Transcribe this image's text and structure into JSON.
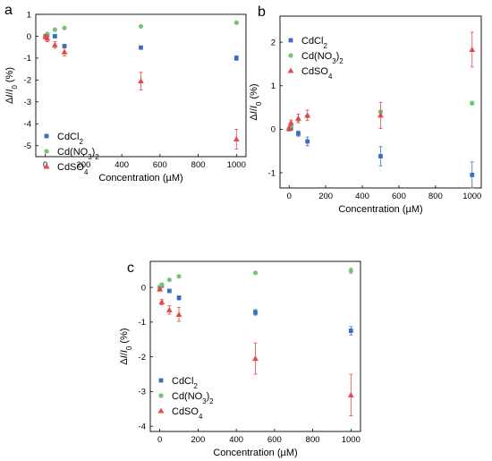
{
  "figure": {
    "panels": [
      {
        "letter": "a",
        "chart_data": {
          "type": "scatter",
          "xlabel": "Concentration (µM)",
          "ylabel": "ΔI/I0 (%)",
          "xlim": [
            -50,
            1050
          ],
          "ylim": [
            -5.5,
            1
          ],
          "x_ticks": [
            0,
            200,
            400,
            600,
            800,
            1000
          ],
          "y_ticks": [
            1,
            0,
            -1,
            -2,
            -3,
            -4,
            -5
          ],
          "legend_position": "bottom-left",
          "series": [
            {
              "name": "CdCl2",
              "marker": "square",
              "color": "#3a6fbf",
              "x": [
                0,
                10,
                50,
                100,
                500,
                1000
              ],
              "y": [
                0.0,
                0.05,
                0.0,
                -0.45,
                -0.52,
                -1.0
              ],
              "err": [
                0.04,
                0.04,
                0.04,
                0.05,
                0.06,
                0.1
              ]
            },
            {
              "name": "Cd(NO3)2",
              "marker": "circle",
              "color": "#74c476",
              "x": [
                0,
                10,
                50,
                100,
                500,
                1000
              ],
              "y": [
                0.0,
                0.1,
                0.3,
                0.38,
                0.45,
                0.62
              ],
              "err": [
                0.02,
                0.02,
                0.03,
                0.03,
                0.03,
                0.05
              ]
            },
            {
              "name": "CdSO4",
              "marker": "triangle",
              "color": "#e8474a",
              "x": [
                0,
                10,
                50,
                100,
                500,
                1000
              ],
              "y": [
                -0.02,
                -0.1,
                -0.4,
                -0.72,
                -2.05,
                -4.7
              ],
              "err": [
                0.1,
                0.15,
                0.15,
                0.18,
                0.4,
                0.45
              ]
            }
          ]
        }
      },
      {
        "letter": "b",
        "chart_data": {
          "type": "scatter",
          "xlabel": "Concentration (µM)",
          "ylabel": "ΔI/I0 (%)",
          "xlim": [
            -50,
            1050
          ],
          "ylim": [
            -1.35,
            2.6
          ],
          "x_ticks": [
            0,
            200,
            400,
            600,
            800,
            1000
          ],
          "y_ticks": [
            2,
            1,
            0,
            -1
          ],
          "legend_position": "top-left",
          "series": [
            {
              "name": "CdCl2",
              "marker": "square",
              "color": "#3a6fbf",
              "x": [
                0,
                10,
                50,
                100,
                500,
                1000
              ],
              "y": [
                0.0,
                0.02,
                -0.1,
                -0.28,
                -0.62,
                -1.05
              ],
              "err": [
                0.03,
                0.04,
                0.06,
                0.1,
                0.22,
                0.3
              ]
            },
            {
              "name": "Cd(NO3)2",
              "marker": "circle",
              "color": "#74c476",
              "x": [
                0,
                10,
                50,
                100,
                500,
                1000
              ],
              "y": [
                0.0,
                0.08,
                0.22,
                0.3,
                0.4,
                0.6
              ],
              "err": [
                0.02,
                0.02,
                0.03,
                0.03,
                0.04,
                0.04
              ]
            },
            {
              "name": "CdSO4",
              "marker": "triangle",
              "color": "#e8474a",
              "x": [
                0,
                10,
                50,
                100,
                500,
                1000
              ],
              "y": [
                0.02,
                0.15,
                0.25,
                0.32,
                0.32,
                1.83
              ],
              "err": [
                0.05,
                0.06,
                0.1,
                0.12,
                0.3,
                0.4
              ]
            }
          ]
        }
      },
      {
        "letter": "c",
        "chart_data": {
          "type": "scatter",
          "xlabel": "Concentration (µM)",
          "ylabel": "ΔI/I0 (%)",
          "xlim": [
            -50,
            1050
          ],
          "ylim": [
            -4.15,
            0.75
          ],
          "x_ticks": [
            0,
            200,
            400,
            600,
            800,
            1000
          ],
          "y_ticks": [
            0,
            -1,
            -2,
            -3,
            -4
          ],
          "legend_position": "bottom-left",
          "series": [
            {
              "name": "CdCl2",
              "marker": "square",
              "color": "#3a6fbf",
              "x": [
                0,
                10,
                50,
                100,
                500,
                1000
              ],
              "y": [
                0.0,
                0.05,
                -0.1,
                -0.3,
                -0.72,
                -1.25
              ],
              "err": [
                0.03,
                0.04,
                0.05,
                0.06,
                0.08,
                0.12
              ]
            },
            {
              "name": "Cd(NO3)2",
              "marker": "circle",
              "color": "#74c476",
              "x": [
                0,
                10,
                50,
                100,
                500,
                1000
              ],
              "y": [
                0.0,
                0.08,
                0.22,
                0.32,
                0.42,
                0.48
              ],
              "err": [
                0.02,
                0.02,
                0.03,
                0.03,
                0.04,
                0.08
              ]
            },
            {
              "name": "CdSO4",
              "marker": "triangle",
              "color": "#e8474a",
              "x": [
                0,
                10,
                50,
                100,
                500,
                1000
              ],
              "y": [
                -0.05,
                -0.42,
                -0.65,
                -0.78,
                -2.05,
                -3.1
              ],
              "err": [
                0.05,
                0.08,
                0.12,
                0.2,
                0.45,
                0.6
              ]
            }
          ]
        }
      }
    ]
  }
}
